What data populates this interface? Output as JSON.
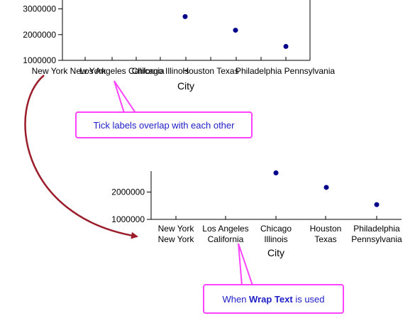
{
  "chart_data": [
    {
      "type": "scatter",
      "title": "",
      "xlabel": "City",
      "ylabel": "",
      "categories": [
        "New York New York",
        "Los Angeles California",
        "Chicago Illinois",
        "Houston Texas",
        "Philadelphia Pennsylvania"
      ],
      "values": [
        null,
        null,
        2700000,
        2170000,
        1540000
      ],
      "y_tick_labels": [
        "1000000",
        "2000000",
        "3000000"
      ],
      "ylim": [
        1000000,
        3400000
      ],
      "grid": false,
      "marker_color": "#00008b"
    },
    {
      "type": "scatter",
      "title": "",
      "xlabel": "City",
      "ylabel": "",
      "categories": [
        [
          "New York",
          "New York"
        ],
        [
          "Los Angeles",
          "California"
        ],
        [
          "Chicago",
          "Illinois"
        ],
        [
          "Houston",
          "Texas"
        ],
        [
          "Philadelphia",
          "Pennsylvania"
        ]
      ],
      "values": [
        null,
        null,
        2700000,
        2170000,
        1540000
      ],
      "y_tick_labels": [
        "1000000",
        "2000000"
      ],
      "ylim": [
        1000000,
        2700000
      ],
      "grid": false,
      "marker_color": "#00008b"
    }
  ],
  "annotations": {
    "overlap_note": "Tick labels overlap with each other",
    "wrap_note_prefix": "When ",
    "wrap_note_bold": "Wrap Text",
    "wrap_note_suffix": " is used",
    "callout_border_color": "#ff44ff",
    "callout_text_color": "#2020c8",
    "arrow_color": "#9b1c2a"
  }
}
